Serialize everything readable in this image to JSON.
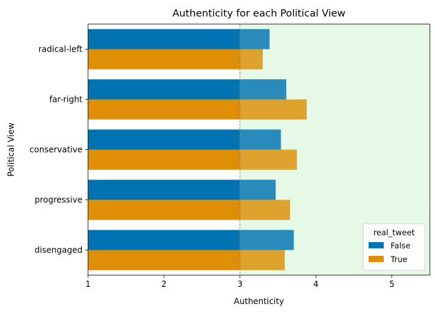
{
  "chart_data": {
    "type": "bar",
    "orientation": "horizontal",
    "title": "Authenticity for each Political View",
    "xlabel": "Authenticity",
    "ylabel": "Political View",
    "categories": [
      "radical-left",
      "far-right",
      "conservative",
      "progressive",
      "disengaged"
    ],
    "series": [
      {
        "name": "False",
        "color": "#0173b2",
        "values": [
          3.39,
          3.61,
          3.54,
          3.47,
          3.71
        ]
      },
      {
        "name": "True",
        "color": "#de8f05",
        "values": [
          3.3,
          3.88,
          3.75,
          3.66,
          3.59
        ]
      }
    ],
    "xlim": [
      1,
      5.5
    ],
    "xticks": [
      "1",
      "2",
      "3",
      "4",
      "5"
    ],
    "reference_line": {
      "x": 3,
      "style": "dashed",
      "color": "#808080"
    },
    "highlight_region": {
      "from": 3,
      "to": 5.5,
      "color": "#e6f9e6"
    },
    "legend": {
      "title": "real_tweet",
      "placement": "lower-right"
    }
  }
}
